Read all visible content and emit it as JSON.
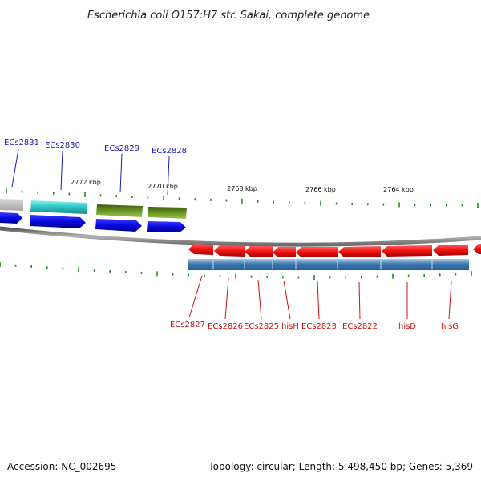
{
  "title": "Escherichia coli O157:H7 str. Sakai, complete genome",
  "footer": {
    "accession": "Accession: NC_002695",
    "topology": "Topology: circular; Length: 5,498,450 bp; Genes: 5,369"
  },
  "colors": {
    "forward_label": "#1a1ab8",
    "reverse_label": "#cc1111",
    "tick": "#228b22",
    "backbone": "#8a8a8a",
    "cds_forward": "#0a0ae0",
    "cds_reverse": "#ee1111",
    "gene_cyan": "#30c8c8",
    "gene_olive": "#5f8a1a",
    "gene_gray": "#bdbdbd",
    "gene_steelblue": "#3a78b0"
  },
  "kbp_labels": [
    "2772 kbp",
    "2770 kbp",
    "2768 kbp",
    "2766 kbp",
    "2764 kbp"
  ],
  "forward_genes": [
    "ECs2831",
    "ECs2830",
    "ECs2829",
    "ECs2828"
  ],
  "reverse_genes": [
    "ECs2827",
    "ECs2826",
    "ECs2825",
    "hisH",
    "ECs2823",
    "ECs2822",
    "hisD",
    "hisG"
  ]
}
